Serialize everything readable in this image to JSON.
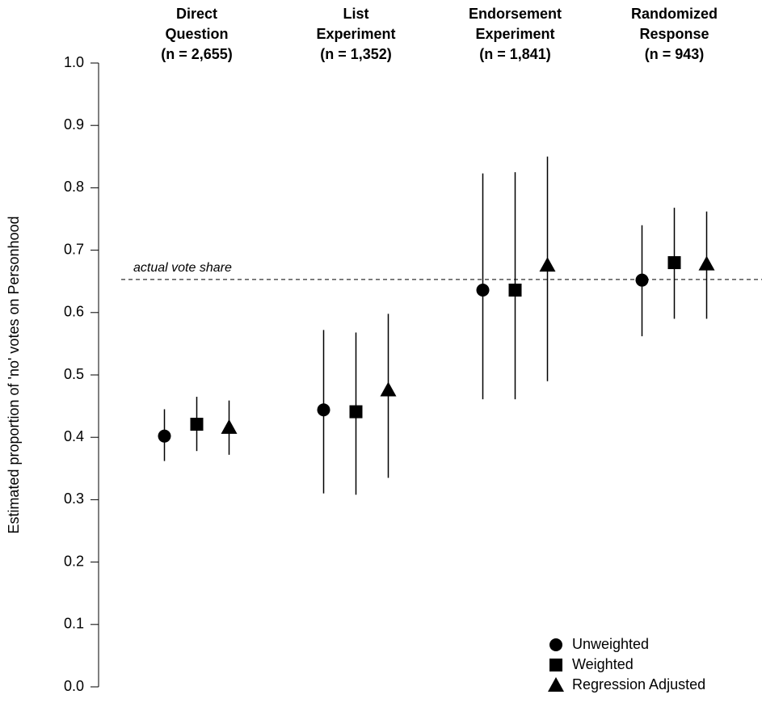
{
  "chart_data": {
    "type": "dot-errorbar",
    "y_label": "Estimated proportion of 'no' votes on Personhood",
    "categories": [
      [
        "Direct",
        "Question",
        "(n = 2,655)"
      ],
      [
        "List",
        "Experiment",
        "(n = 1,352)"
      ],
      [
        "Endorsement",
        "Experiment",
        "(n = 1,841)"
      ],
      [
        "Randomized",
        "Response",
        "(n = 943)"
      ]
    ],
    "series": [
      {
        "name": "Unweighted",
        "marker": "circle",
        "color": "#000000",
        "values": [
          0.402,
          0.444,
          0.636,
          0.652
        ],
        "lower": [
          0.362,
          0.31,
          0.461,
          0.562
        ],
        "upper": [
          0.445,
          0.572,
          0.823,
          0.74
        ]
      },
      {
        "name": "Weighted",
        "marker": "square",
        "color": "#000000",
        "values": [
          0.421,
          0.441,
          0.636,
          0.68
        ],
        "lower": [
          0.378,
          0.308,
          0.461,
          0.59
        ],
        "upper": [
          0.465,
          0.568,
          0.825,
          0.768
        ]
      },
      {
        "name": "Regression Adjusted",
        "marker": "triangle",
        "color": "#000000",
        "values": [
          0.416,
          0.476,
          0.676,
          0.678
        ],
        "lower": [
          0.372,
          0.335,
          0.49,
          0.59
        ],
        "upper": [
          0.459,
          0.598,
          0.85,
          0.762
        ]
      }
    ],
    "reference_line": {
      "value": 0.653,
      "label": "actual vote share"
    },
    "ylim": [
      0,
      1
    ],
    "yticks": [
      {
        "value": 0,
        "label": "0.0"
      },
      0.1,
      0.2,
      0.3,
      0.4,
      0.5,
      0.6,
      0.7,
      0.8,
      0.9,
      {
        "value": 1,
        "label": "1.0"
      }
    ],
    "legend": "bottom-right"
  }
}
